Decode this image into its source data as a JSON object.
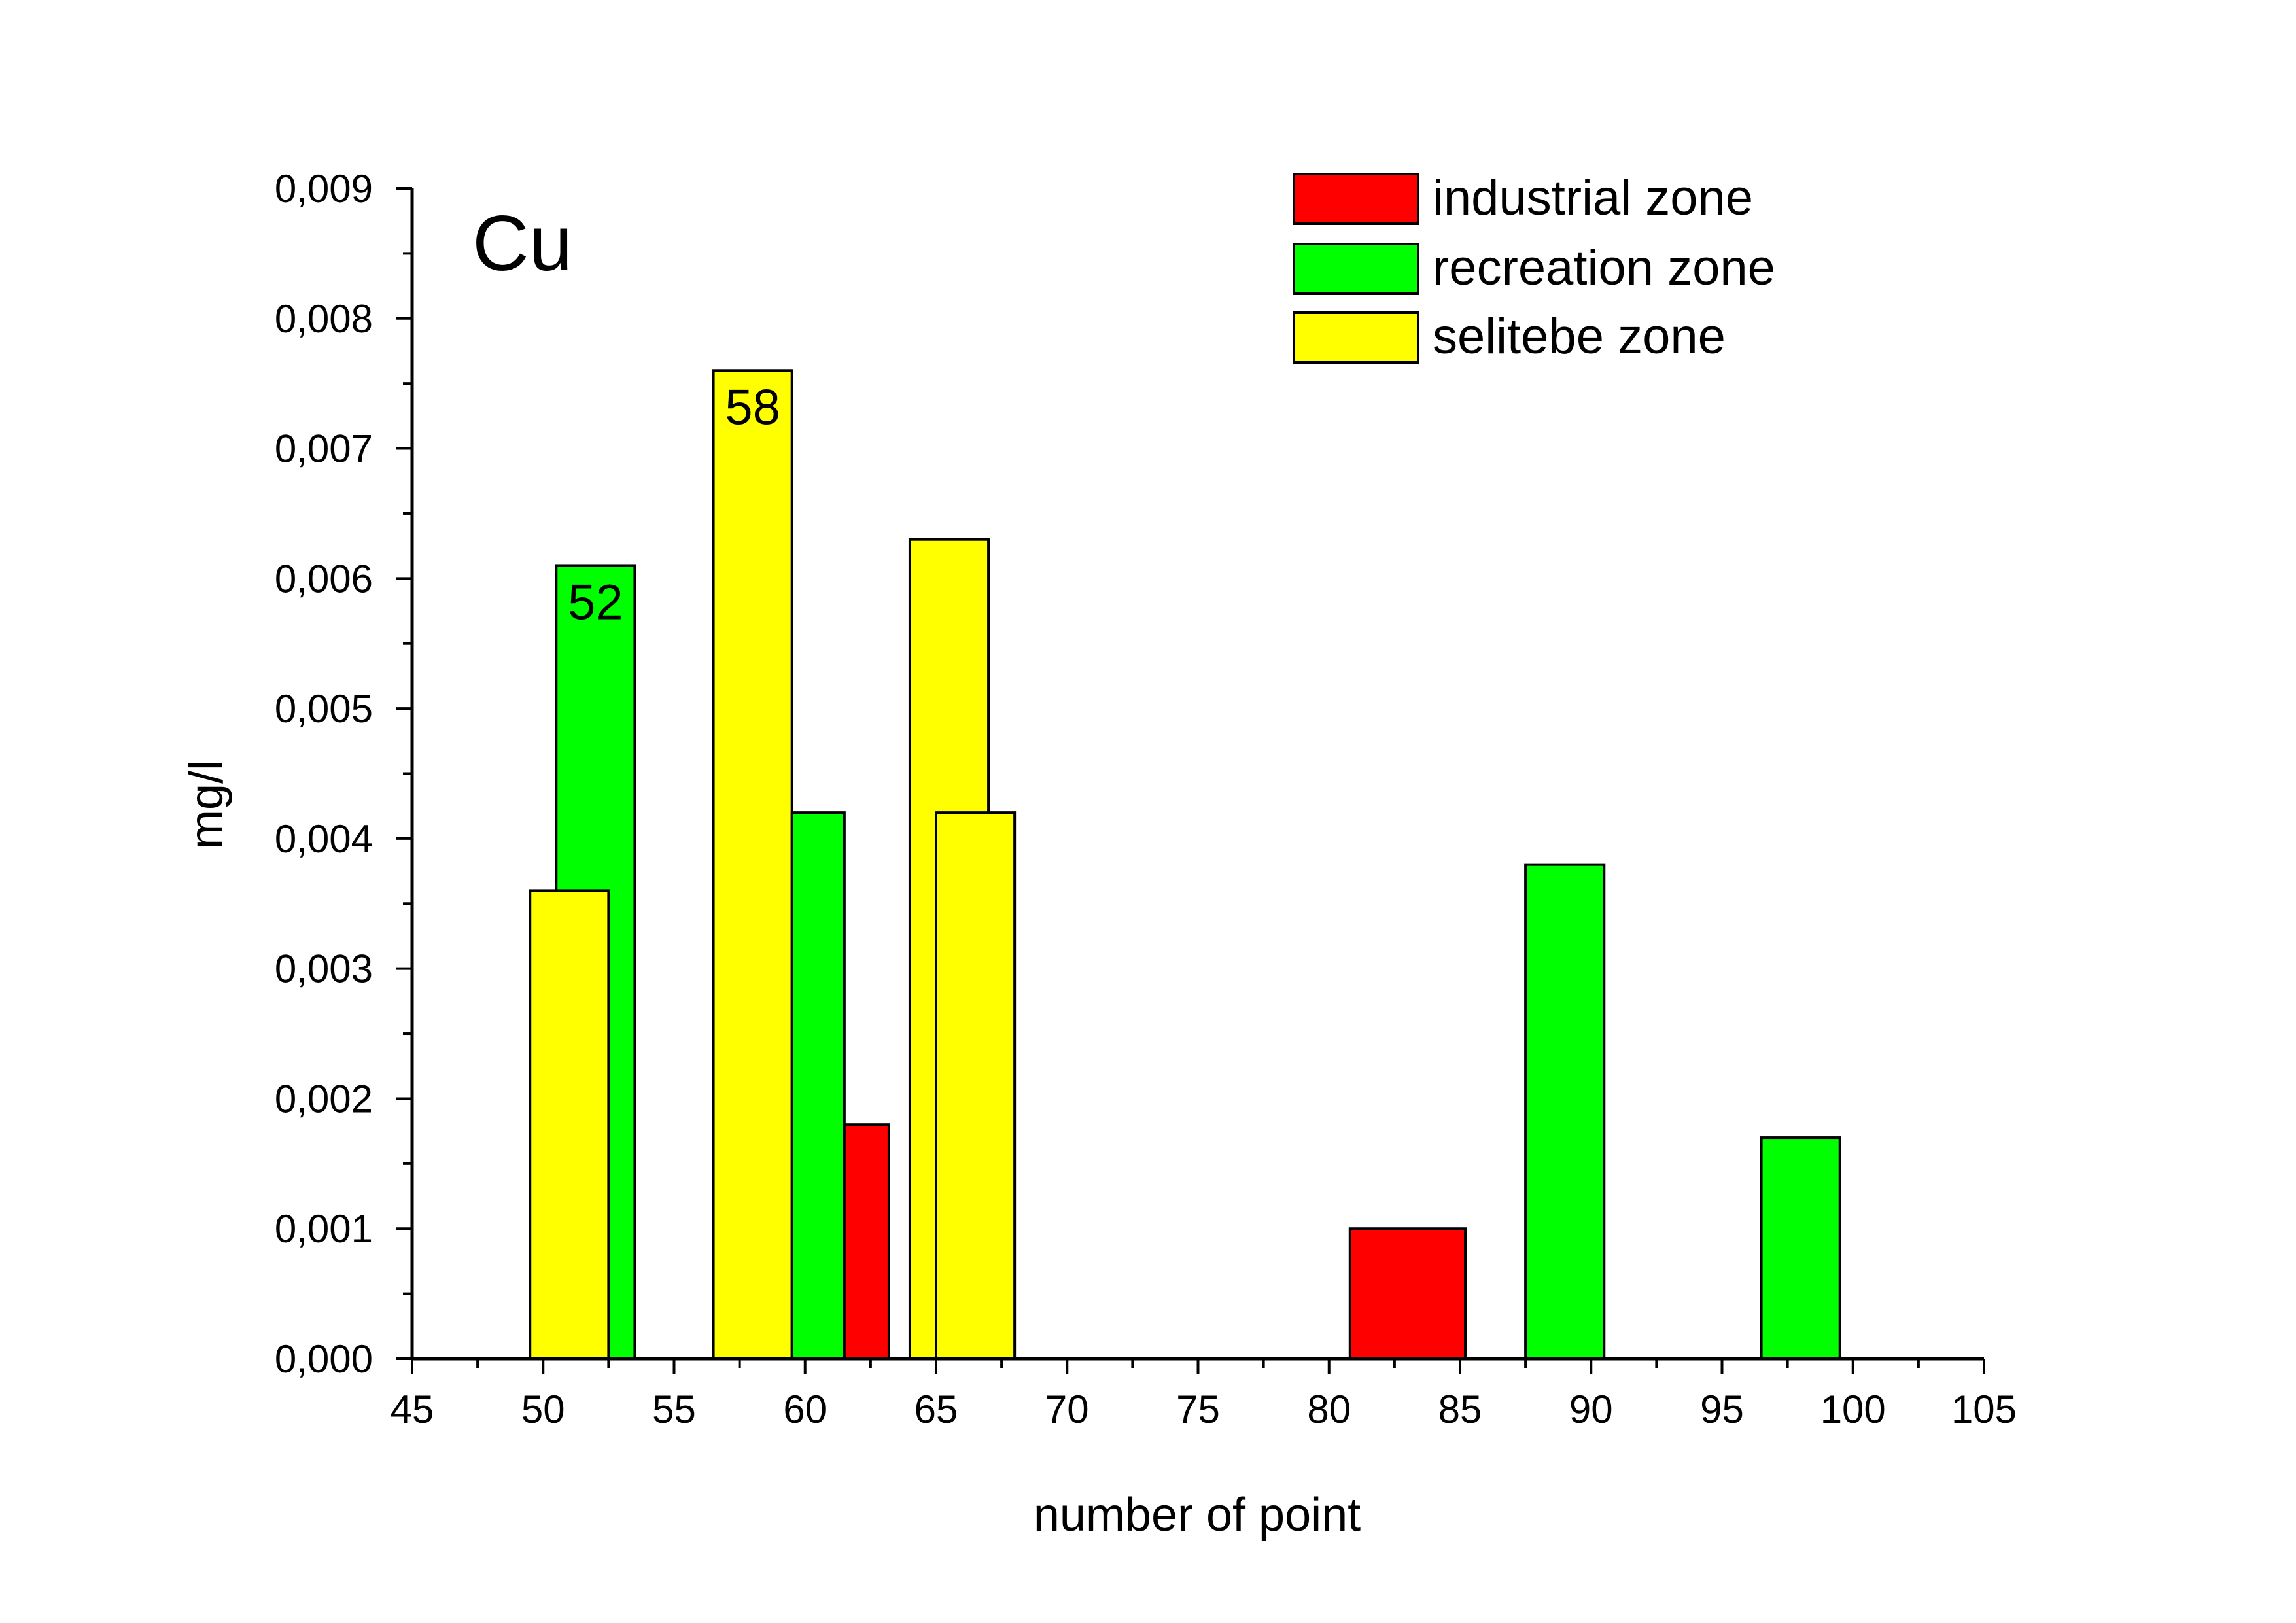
{
  "chart_data": {
    "type": "bar",
    "title": "Cu",
    "xlabel": "number of point",
    "ylabel": "mg/l",
    "xlim": [
      45,
      105
    ],
    "ylim": [
      0,
      0.009
    ],
    "x_ticks": [
      "45",
      "50",
      "55",
      "60",
      "65",
      "70",
      "75",
      "80",
      "85",
      "90",
      "95",
      "100",
      "105"
    ],
    "y_ticks": [
      "0,000",
      "0,001",
      "0,002",
      "0,003",
      "0,004",
      "0,005",
      "0,006",
      "0,007",
      "0,008",
      "0,009"
    ],
    "grid": false,
    "legend_position": "top-right",
    "series": [
      {
        "name": "industrial zone",
        "color": "#ff0000",
        "bars": [
          {
            "x0": 61.5,
            "x1": 63.2,
            "value": 0.0018
          },
          {
            "x0": 80.8,
            "x1": 85.2,
            "value": 0.001
          }
        ]
      },
      {
        "name": "recreation zone",
        "color": "#00ff00",
        "bars": [
          {
            "x0": 50.5,
            "x1": 53.5,
            "value": 0.0061
          },
          {
            "x0": 59.5,
            "x1": 61.5,
            "value": 0.0042
          },
          {
            "x0": 87.5,
            "x1": 90.5,
            "value": 0.0038
          },
          {
            "x0": 96.5,
            "x1": 99.5,
            "value": 0.0017
          }
        ]
      },
      {
        "name": "selitebe zone",
        "color": "#ffff00",
        "bars": [
          {
            "x0": 49.5,
            "x1": 52.5,
            "value": 0.0036
          },
          {
            "x0": 56.5,
            "x1": 59.5,
            "value": 0.0076
          },
          {
            "x0": 64.0,
            "x1": 67.0,
            "value": 0.0063
          },
          {
            "x0": 65.0,
            "x1": 68.0,
            "value": 0.0042
          }
        ]
      }
    ],
    "draw_order": [
      [
        1,
        0
      ],
      [
        2,
        0
      ],
      [
        2,
        1
      ],
      [
        1,
        1
      ],
      [
        0,
        0
      ],
      [
        2,
        2
      ],
      [
        2,
        3
      ],
      [
        0,
        1
      ],
      [
        1,
        2
      ],
      [
        1,
        3
      ]
    ],
    "bar_labels": [
      {
        "text": "52",
        "series": 1,
        "bar": 0
      },
      {
        "text": "58",
        "series": 2,
        "bar": 1
      }
    ]
  }
}
